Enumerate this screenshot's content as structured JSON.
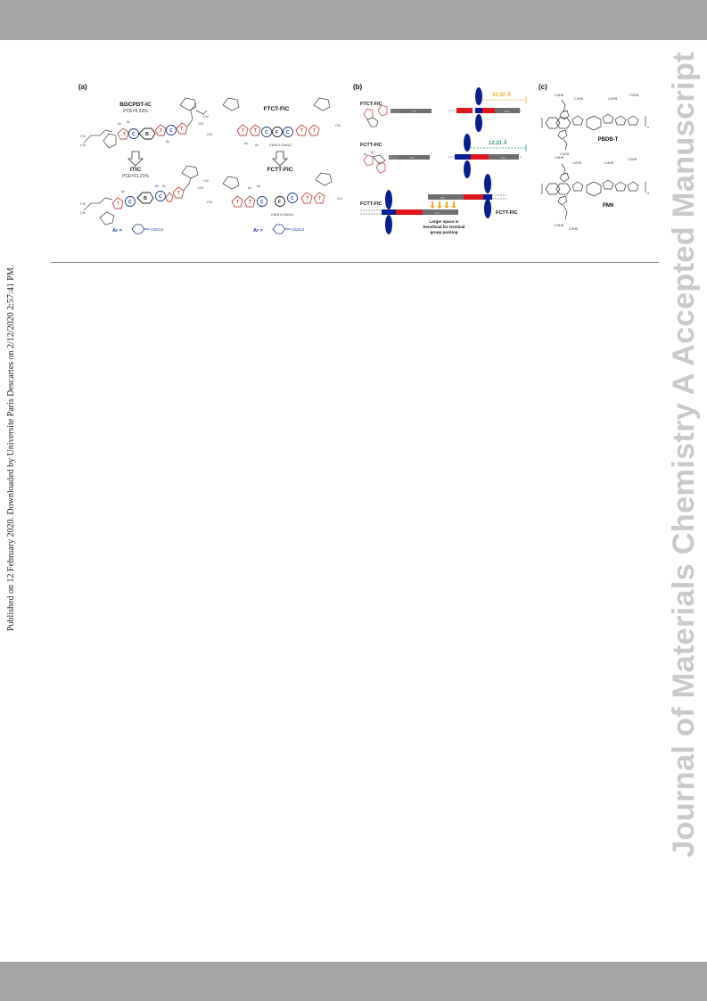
{
  "header": {
    "band_color": "#a6a6a6"
  },
  "footer": {
    "band_color": "#a6a6a6"
  },
  "side_note": "Published on 12 February 2020. Downloaded by Universite Paris Descartes on 2/12/2020 2:57:41 PM.",
  "watermark": "Journal of Materials Chemistry A Accepted Manuscript",
  "figure": {
    "panel_a": {
      "label": "(a)",
      "mol1_name": "BDCPDT-IC",
      "mol1_pce": "PCE=9.33%",
      "mol2_name": "ITIC",
      "mol2_pce": "PCE=11.21%",
      "mol3_name": "FTCT-FIC",
      "mol4_name": "FCTT-FIC",
      "ar_label_left": "Ar =",
      "ar_label_right": "Ar =",
      "ar_sub": "C6H13",
      "ring_B": "B",
      "ring_C": "C",
      "ring_T": "T",
      "ring_F": "F",
      "chain": "C6H13 C6H13",
      "cn": "CN",
      "ar": "Ar",
      "colors": {
        "thiophene": "#c0504d",
        "core": "#1f3f8f",
        "frame": "#555555"
      }
    },
    "panel_b": {
      "label": "(b)",
      "mol1_name": "FTCT-FIC",
      "mol2_name": "FCTT-FIC",
      "mol3_left": "FCTT-FIC",
      "mol3_right": "FCTT-FIC",
      "dist1": "10.52 Å",
      "dist2": "12.21 Å",
      "note_line1": "Larger space is",
      "note_line2": "beneficial for terminal",
      "note_line3": "group packing",
      "fic": "FIC",
      "colors": {
        "ellipse": "#0a1f8f",
        "red_bar": "#e0161b",
        "grey_bar": "#6f6f6f",
        "dist1": "#e8b020",
        "dist2": "#2e9e6a"
      }
    },
    "panel_c": {
      "label": "(c)",
      "polymer1": "PBDB-T",
      "polymer2": "PM6",
      "chain_a": "C4H9",
      "chain_b": "C2H5",
      "n": "n"
    }
  }
}
